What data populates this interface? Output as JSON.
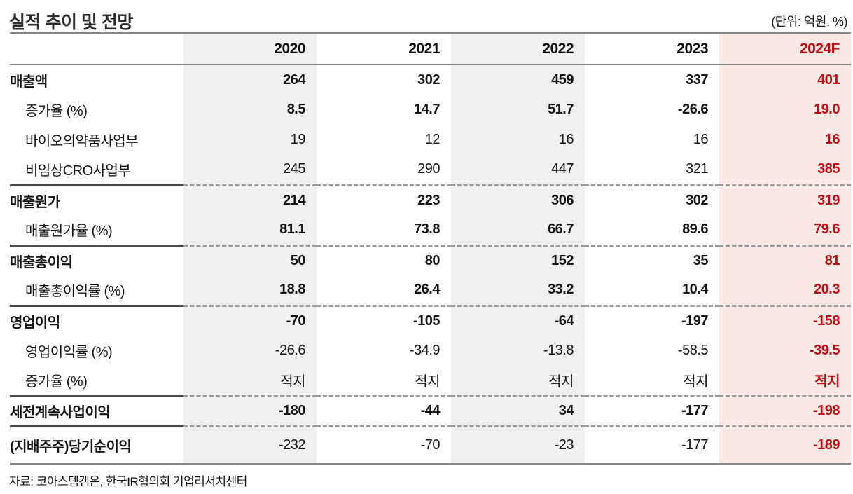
{
  "page": {
    "title": "실적 추이 및 전망",
    "unit_note": "(단위: 억원, %)",
    "source": "자료: 코아스템켐온, 한국IR협의회 기업리서치센터"
  },
  "colors": {
    "accent_red": "#c00d14",
    "forecast_column_bg": "#fce8e5",
    "stripe_column_bg": "#f0f0f0"
  },
  "table": {
    "columns": [
      "2020",
      "2021",
      "2022",
      "2023",
      "2024F"
    ],
    "forecast_column": "2024F",
    "rows": [
      {
        "label": "매출액",
        "indent": false,
        "label_bold": true,
        "values_bold": true,
        "divider_after": false,
        "values": [
          "264",
          "302",
          "459",
          "337",
          "401"
        ]
      },
      {
        "label": "증가율 (%)",
        "indent": true,
        "label_bold": false,
        "values_bold": true,
        "divider_after": false,
        "values": [
          "8.5",
          "14.7",
          "51.7",
          "-26.6",
          "19.0"
        ]
      },
      {
        "label": "바이오의약품사업부",
        "indent": true,
        "label_bold": false,
        "values_bold": false,
        "divider_after": false,
        "values": [
          "19",
          "12",
          "16",
          "16",
          "16"
        ]
      },
      {
        "label": "비임상CRO사업부",
        "indent": true,
        "label_bold": false,
        "values_bold": false,
        "divider_after": true,
        "values": [
          "245",
          "290",
          "447",
          "321",
          "385"
        ]
      },
      {
        "label": "매출원가",
        "indent": false,
        "label_bold": true,
        "values_bold": true,
        "divider_after": false,
        "values": [
          "214",
          "223",
          "306",
          "302",
          "319"
        ]
      },
      {
        "label": "매출원가율 (%)",
        "indent": true,
        "label_bold": false,
        "values_bold": true,
        "divider_after": true,
        "values": [
          "81.1",
          "73.8",
          "66.7",
          "89.6",
          "79.6"
        ]
      },
      {
        "label": "매출총이익",
        "indent": false,
        "label_bold": true,
        "values_bold": true,
        "divider_after": false,
        "values": [
          "50",
          "80",
          "152",
          "35",
          "81"
        ]
      },
      {
        "label": "매출총이익률 (%)",
        "indent": true,
        "label_bold": false,
        "values_bold": true,
        "divider_after": true,
        "values": [
          "18.8",
          "26.4",
          "33.2",
          "10.4",
          "20.3"
        ]
      },
      {
        "label": "영업이익",
        "indent": false,
        "label_bold": true,
        "values_bold": true,
        "divider_after": false,
        "values": [
          "-70",
          "-105",
          "-64",
          "-197",
          "-158"
        ]
      },
      {
        "label": "영업이익률 (%)",
        "indent": true,
        "label_bold": false,
        "values_bold": false,
        "divider_after": false,
        "values": [
          "-26.6",
          "-34.9",
          "-13.8",
          "-58.5",
          "-39.5"
        ]
      },
      {
        "label": "증가율 (%)",
        "indent": true,
        "label_bold": false,
        "values_bold": false,
        "divider_after": true,
        "values": [
          "적지",
          "적지",
          "적지",
          "적지",
          "적지"
        ]
      },
      {
        "label": "세전계속사업이익",
        "indent": false,
        "label_bold": true,
        "values_bold": true,
        "divider_after": true,
        "values": [
          "-180",
          "-44",
          "34",
          "-177",
          "-198"
        ]
      },
      {
        "label": "(지배주주)당기순이익",
        "indent": false,
        "label_bold": true,
        "values_bold": false,
        "divider_after": false,
        "values": [
          "-232",
          "-70",
          "-23",
          "-177",
          "-189"
        ]
      }
    ]
  }
}
